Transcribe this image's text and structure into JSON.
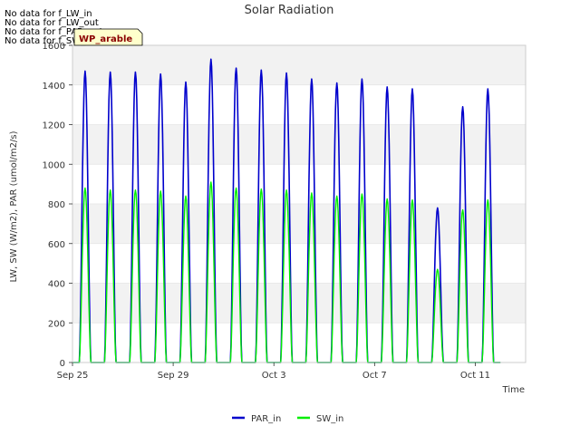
{
  "chart_data": {
    "type": "line",
    "title": "Solar Radiation",
    "xlabel": "Time",
    "ylabel": "LW, SW (W/m2), PAR (umol/m2/s)",
    "ylim": [
      0,
      1600
    ],
    "xlim": [
      "2024-09-25",
      "2024-10-13"
    ],
    "year": 2024,
    "y_ticks": [
      0,
      200,
      400,
      600,
      800,
      1000,
      1200,
      1400,
      1600
    ],
    "x_ticks": [
      {
        "date": "2024-09-25",
        "label": "Sep 25"
      },
      {
        "date": "2024-09-29",
        "label": "Sep 29"
      },
      {
        "date": "2024-10-03",
        "label": "Oct 3"
      },
      {
        "date": "2024-10-07",
        "label": "Oct 7"
      },
      {
        "date": "2024-10-11",
        "label": "Oct 11"
      }
    ],
    "no_data_messages": [
      "No data for f_LW_in",
      "No data for f_LW_out",
      "No data for f_PAR_out",
      "No data for f_SW_out"
    ],
    "badge_label": "WP_arable",
    "grid": "horizontal bands",
    "legend_position": "bottom-center",
    "series": [
      {
        "name": "PAR_in",
        "color": "#0000cc",
        "daily_peaks": [
          {
            "date": "2024-09-25",
            "peak": 1470
          },
          {
            "date": "2024-09-26",
            "peak": 1465
          },
          {
            "date": "2024-09-27",
            "peak": 1465
          },
          {
            "date": "2024-09-28",
            "peak": 1455
          },
          {
            "date": "2024-09-29",
            "peak": 1415
          },
          {
            "date": "2024-09-30",
            "peak": 1530
          },
          {
            "date": "2024-10-01",
            "peak": 1485
          },
          {
            "date": "2024-10-02",
            "peak": 1475
          },
          {
            "date": "2024-10-03",
            "peak": 1460
          },
          {
            "date": "2024-10-04",
            "peak": 1430
          },
          {
            "date": "2024-10-05",
            "peak": 1410
          },
          {
            "date": "2024-10-06",
            "peak": 1430
          },
          {
            "date": "2024-10-07",
            "peak": 1390
          },
          {
            "date": "2024-10-08",
            "peak": 1380
          },
          {
            "date": "2024-10-09",
            "peak": 780
          },
          {
            "date": "2024-10-10",
            "peak": 1290
          },
          {
            "date": "2024-10-11",
            "peak": 1380
          }
        ]
      },
      {
        "name": "SW_in",
        "color": "#00ee00",
        "daily_peaks": [
          {
            "date": "2024-09-25",
            "peak": 880
          },
          {
            "date": "2024-09-26",
            "peak": 870
          },
          {
            "date": "2024-09-27",
            "peak": 870
          },
          {
            "date": "2024-09-28",
            "peak": 865
          },
          {
            "date": "2024-09-29",
            "peak": 840
          },
          {
            "date": "2024-09-30",
            "peak": 910
          },
          {
            "date": "2024-10-01",
            "peak": 880
          },
          {
            "date": "2024-10-02",
            "peak": 875
          },
          {
            "date": "2024-10-03",
            "peak": 870
          },
          {
            "date": "2024-10-04",
            "peak": 855
          },
          {
            "date": "2024-10-05",
            "peak": 840
          },
          {
            "date": "2024-10-06",
            "peak": 850
          },
          {
            "date": "2024-10-07",
            "peak": 825
          },
          {
            "date": "2024-10-08",
            "peak": 820
          },
          {
            "date": "2024-10-09",
            "peak": 470
          },
          {
            "date": "2024-10-10",
            "peak": 770
          },
          {
            "date": "2024-10-11",
            "peak": 820
          }
        ]
      }
    ]
  }
}
